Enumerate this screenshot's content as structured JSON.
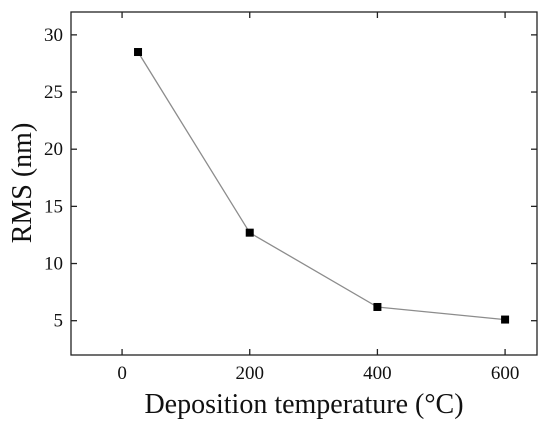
{
  "chart_data": {
    "type": "line",
    "title": "",
    "xlabel": "Deposition temperature (°C)",
    "ylabel": "RMS (nm)",
    "xlim": [
      -80,
      650
    ],
    "ylim": [
      2,
      32
    ],
    "xticks": [
      0,
      200,
      400,
      600
    ],
    "yticks": [
      5,
      10,
      15,
      20,
      25,
      30
    ],
    "xtick_labels": [
      "0",
      "200",
      "400",
      "600"
    ],
    "ytick_labels": [
      "5",
      "10",
      "15",
      "20",
      "25",
      "30"
    ],
    "grid": false,
    "legend": "none",
    "series": [
      {
        "x": [
          25,
          200,
          400,
          600
        ],
        "y": [
          28.5,
          12.7,
          6.2,
          5.1
        ],
        "marker": "square",
        "marker_color": "#000000",
        "line_color": "#8c8c8c"
      }
    ]
  }
}
